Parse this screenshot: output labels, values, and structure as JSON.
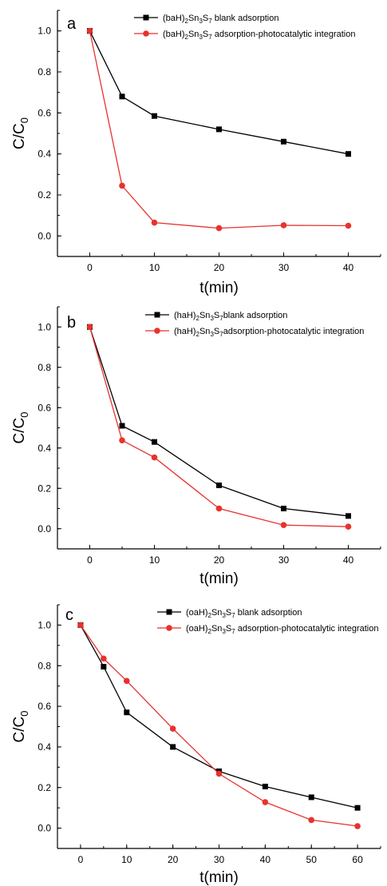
{
  "chart_data": [
    {
      "type": "line",
      "panel_label": "a",
      "xlabel": "t(min)",
      "ylabel": "C/C0",
      "ylim": [
        -0.1,
        1.1
      ],
      "xlim": [
        -5,
        45
      ],
      "xticks": [
        0,
        10,
        20,
        30,
        40
      ],
      "yticks": [
        0.0,
        0.2,
        0.4,
        0.6,
        0.8,
        1.0
      ],
      "legend_position": "top-right",
      "series": [
        {
          "name": "(baH)2Sn3S7 blank adsorption",
          "legend_prefix": "(baH)",
          "legend_formula": [
            "2",
            "Sn",
            "3",
            "S",
            "7"
          ],
          "legend_suffix": " blank adsorption",
          "color": "#000000",
          "marker": "square",
          "x": [
            0,
            5,
            10,
            20,
            30,
            40
          ],
          "y": [
            1.0,
            0.68,
            0.585,
            0.52,
            0.46,
            0.4
          ]
        },
        {
          "name": "(baH)2Sn3S7 adsorption-photocatalytic integration",
          "legend_prefix": "(baH)",
          "legend_formula": [
            "2",
            "Sn",
            "3",
            "S",
            "7"
          ],
          "legend_suffix": " adsorption-photocatalytic integration",
          "color": "#e8322d",
          "marker": "circle",
          "x": [
            0,
            5,
            10,
            20,
            30,
            40
          ],
          "y": [
            1.0,
            0.245,
            0.065,
            0.038,
            0.052,
            0.05
          ]
        }
      ]
    },
    {
      "type": "line",
      "panel_label": "b",
      "xlabel": "t(min)",
      "ylabel": "C/C0",
      "ylim": [
        -0.1,
        1.1
      ],
      "xlim": [
        -5,
        45
      ],
      "xticks": [
        0,
        10,
        20,
        30,
        40
      ],
      "yticks": [
        0.0,
        0.2,
        0.4,
        0.6,
        0.8,
        1.0
      ],
      "legend_position": "top-right",
      "series": [
        {
          "name": "(haH)2Sn3S7blank adsorption",
          "legend_prefix": "(haH)",
          "legend_formula": [
            "2",
            "Sn",
            "3",
            "S",
            "7"
          ],
          "legend_suffix": "blank adsorption",
          "color": "#000000",
          "marker": "square",
          "x": [
            0,
            5,
            10,
            20,
            30,
            40
          ],
          "y": [
            1.0,
            0.51,
            0.43,
            0.215,
            0.1,
            0.063
          ]
        },
        {
          "name": "(haH)2Sn3S7adsorption-photocatalytic integration",
          "legend_prefix": "(haH)",
          "legend_formula": [
            "2",
            "Sn",
            "3",
            "S",
            "7"
          ],
          "legend_suffix": "adsorption-photocatalytic integration",
          "color": "#e8322d",
          "marker": "circle",
          "x": [
            0,
            5,
            10,
            20,
            30,
            40
          ],
          "y": [
            1.0,
            0.438,
            0.353,
            0.1,
            0.018,
            0.01
          ]
        }
      ]
    },
    {
      "type": "line",
      "panel_label": "c",
      "xlabel": "t(min)",
      "ylabel": "C/C0",
      "ylim": [
        -0.1,
        1.1
      ],
      "xlim": [
        -5,
        65
      ],
      "xticks": [
        0,
        10,
        20,
        30,
        40,
        50,
        60
      ],
      "yticks": [
        0.0,
        0.2,
        0.4,
        0.6,
        0.8,
        1.0
      ],
      "legend_position": "top-right",
      "series": [
        {
          "name": "(oaH)2Sn3S7 blank adsorption",
          "legend_prefix": "(oaH)",
          "legend_formula": [
            "2",
            "Sn",
            "3",
            "S",
            "7"
          ],
          "legend_suffix": " blank adsorption",
          "color": "#000000",
          "marker": "square",
          "x": [
            0,
            5,
            10,
            20,
            30,
            40,
            50,
            60
          ],
          "y": [
            1.0,
            0.795,
            0.57,
            0.4,
            0.28,
            0.205,
            0.152,
            0.1
          ]
        },
        {
          "name": "(oaH)2Sn3S7 adsorption-photocatalytic integration",
          "legend_prefix": "(oaH)",
          "legend_formula": [
            "2",
            "Sn",
            "3",
            "S",
            "7"
          ],
          "legend_suffix": " adsorption-photocatalytic integration",
          "color": "#e8322d",
          "marker": "circle",
          "x": [
            0,
            5,
            10,
            20,
            30,
            40,
            50,
            60
          ],
          "y": [
            1.0,
            0.835,
            0.725,
            0.49,
            0.268,
            0.128,
            0.04,
            0.01
          ]
        }
      ]
    }
  ]
}
